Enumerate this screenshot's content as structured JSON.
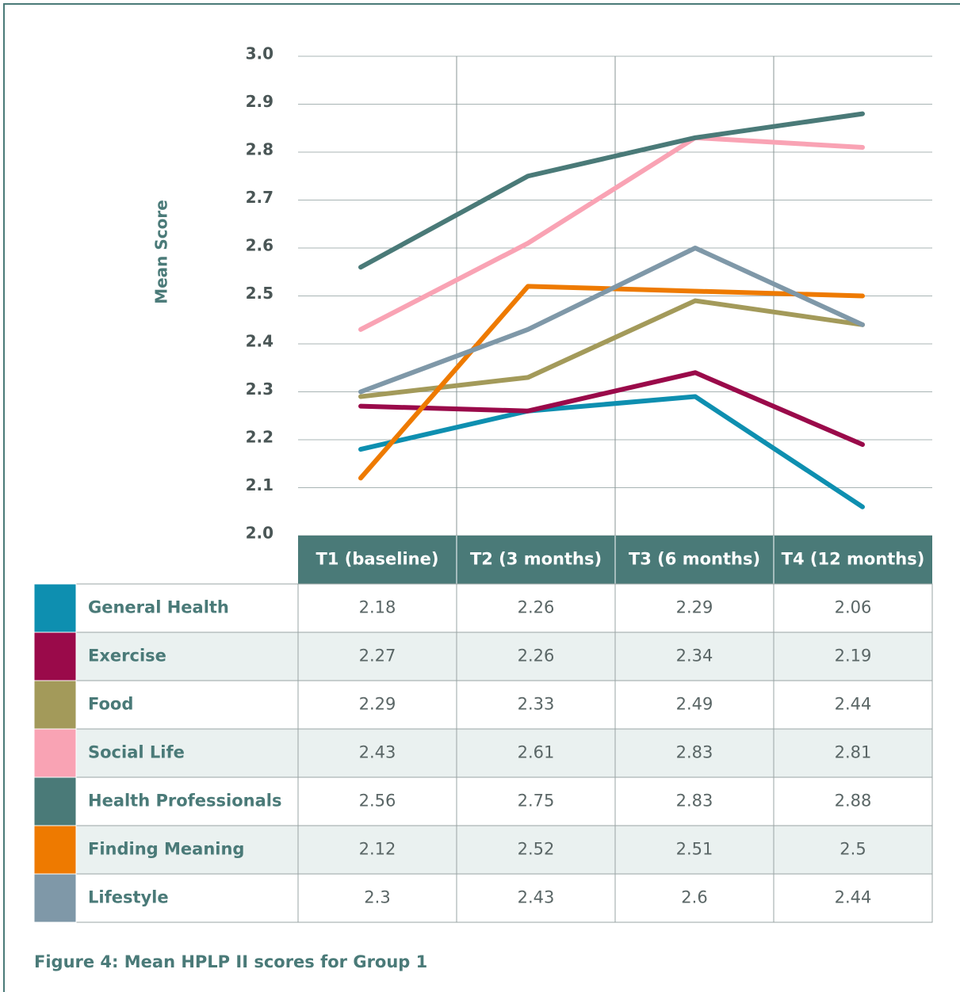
{
  "chart_data": {
    "type": "line",
    "y_label": "Mean Score",
    "caption": "Figure 4: Mean HPLP II scores for Group 1",
    "categories": [
      "T1 (baseline)",
      "T2 (3 months)",
      "T3 (6 months)",
      "T4 (12 months)"
    ],
    "series": [
      {
        "name": "General Health",
        "color": "#0e8fb0",
        "values": [
          2.18,
          2.26,
          2.29,
          2.06
        ]
      },
      {
        "name": "Exercise",
        "color": "#9a0a4a",
        "values": [
          2.27,
          2.26,
          2.34,
          2.19
        ]
      },
      {
        "name": "Food",
        "color": "#a39a5a",
        "values": [
          2.29,
          2.33,
          2.49,
          2.44
        ]
      },
      {
        "name": "Social Life",
        "color": "#f9a3b4",
        "values": [
          2.43,
          2.61,
          2.83,
          2.81
        ]
      },
      {
        "name": "Health Professionals",
        "color": "#4a7a78",
        "values": [
          2.56,
          2.75,
          2.83,
          2.88
        ]
      },
      {
        "name": "Finding Meaning",
        "color": "#ee7a00",
        "values": [
          2.12,
          2.52,
          2.51,
          2.5
        ]
      },
      {
        "name": "Lifestyle",
        "color": "#7f98a8",
        "values": [
          2.3,
          2.43,
          2.6,
          2.44
        ]
      }
    ],
    "ylim": [
      2.0,
      3.0
    ],
    "yticks": [
      {
        "value": 2.0,
        "label": "2.0"
      },
      2.1,
      2.2,
      2.3,
      2.4,
      2.5,
      2.6,
      2.7,
      2.8,
      2.9,
      {
        "value": 3.0,
        "label": "3.0"
      }
    ],
    "grid": true
  }
}
